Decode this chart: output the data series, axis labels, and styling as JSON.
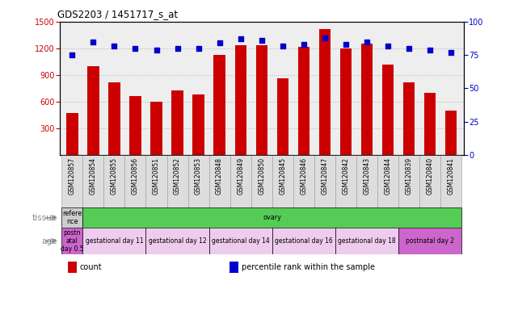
{
  "title": "GDS2203 / 1451717_s_at",
  "samples": [
    "GSM120857",
    "GSM120854",
    "GSM120855",
    "GSM120856",
    "GSM120851",
    "GSM120852",
    "GSM120853",
    "GSM120848",
    "GSM120849",
    "GSM120850",
    "GSM120845",
    "GSM120846",
    "GSM120847",
    "GSM120842",
    "GSM120843",
    "GSM120844",
    "GSM120839",
    "GSM120840",
    "GSM120841"
  ],
  "counts": [
    470,
    1000,
    820,
    660,
    600,
    730,
    680,
    1130,
    1240,
    1240,
    860,
    1220,
    1420,
    1200,
    1250,
    1020,
    820,
    700,
    500
  ],
  "percentiles": [
    75,
    85,
    82,
    80,
    79,
    80,
    80,
    84,
    87,
    86,
    82,
    83,
    88,
    83,
    85,
    82,
    80,
    79,
    77
  ],
  "ylim_left": [
    0,
    1500
  ],
  "ylim_right": [
    0,
    100
  ],
  "yticks_left": [
    300,
    600,
    900,
    1200,
    1500
  ],
  "yticks_right": [
    0,
    25,
    50,
    75,
    100
  ],
  "bar_color": "#cc0000",
  "dot_color": "#0000cc",
  "grid_color": "#aaaaaa",
  "tissue_segments": [
    {
      "text": "refere\nnce",
      "color": "#cccccc",
      "count": 1
    },
    {
      "text": "ovary",
      "color": "#55cc55",
      "count": 18
    }
  ],
  "age_segments": [
    {
      "text": "postn\natal\nday 0.5",
      "color": "#cc66cc",
      "count": 1
    },
    {
      "text": "gestational day 11",
      "color": "#eeccee",
      "count": 3
    },
    {
      "text": "gestational day 12",
      "color": "#eeccee",
      "count": 3
    },
    {
      "text": "gestational day 14",
      "color": "#eeccee",
      "count": 3
    },
    {
      "text": "gestational day 16",
      "color": "#eeccee",
      "count": 3
    },
    {
      "text": "gestational day 18",
      "color": "#eeccee",
      "count": 3
    },
    {
      "text": "postnatal day 2",
      "color": "#cc66cc",
      "count": 3
    }
  ],
  "legend_items": [
    {
      "color": "#cc0000",
      "label": "count"
    },
    {
      "color": "#0000cc",
      "label": "percentile rank within the sample"
    }
  ],
  "plot_bg": "#eeeeee",
  "label_color": "#888888",
  "tissue_label": "tissue",
  "age_label": "age"
}
